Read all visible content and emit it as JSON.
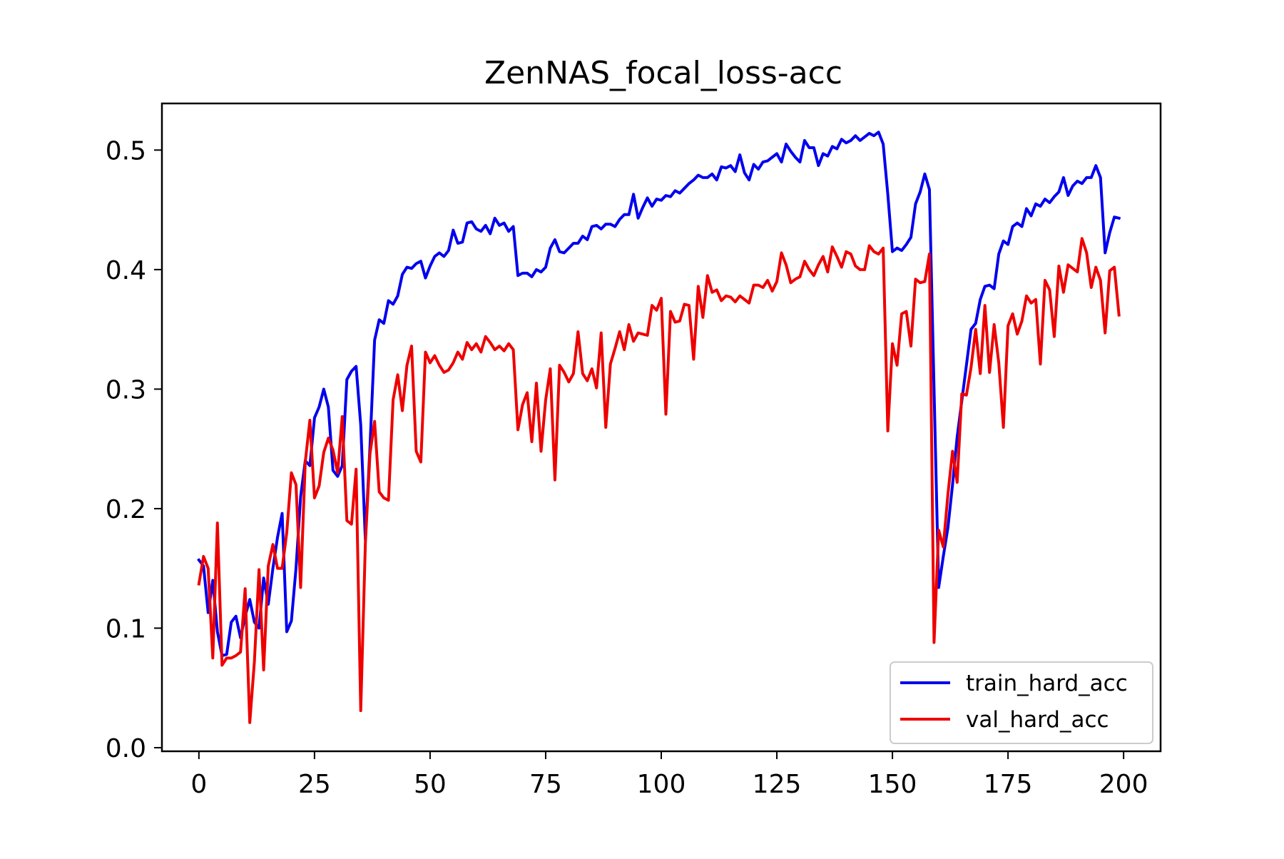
{
  "chart_data": {
    "type": "line",
    "title": "ZenNAS_focal_loss-acc",
    "xlabel": "",
    "ylabel": "",
    "xlim": [
      -8,
      208
    ],
    "ylim": [
      -0.003,
      0.539
    ],
    "xticks": [
      0,
      25,
      50,
      75,
      100,
      125,
      150,
      175,
      200
    ],
    "xtick_labels": [
      "0",
      "25",
      "50",
      "75",
      "100",
      "125",
      "150",
      "175",
      "200"
    ],
    "yticks": [
      0.0,
      0.1,
      0.2,
      0.3,
      0.4,
      0.5
    ],
    "ytick_labels": [
      "0.0",
      "0.1",
      "0.2",
      "0.3",
      "0.4",
      "0.5"
    ],
    "grid": false,
    "legend_position": "lower-right",
    "series": [
      {
        "name": "train_hard_acc",
        "color": "#0000ee",
        "values": [
          0.157,
          0.152,
          0.113,
          0.14,
          0.097,
          0.077,
          0.078,
          0.105,
          0.11,
          0.092,
          0.11,
          0.124,
          0.105,
          0.1,
          0.142,
          0.12,
          0.15,
          0.176,
          0.196,
          0.097,
          0.106,
          0.15,
          0.21,
          0.24,
          0.236,
          0.276,
          0.285,
          0.3,
          0.285,
          0.232,
          0.227,
          0.236,
          0.308,
          0.315,
          0.319,
          0.27,
          0.174,
          0.252,
          0.341,
          0.358,
          0.355,
          0.374,
          0.371,
          0.378,
          0.396,
          0.402,
          0.401,
          0.405,
          0.407,
          0.393,
          0.403,
          0.411,
          0.414,
          0.411,
          0.416,
          0.433,
          0.422,
          0.423,
          0.439,
          0.44,
          0.434,
          0.432,
          0.437,
          0.43,
          0.443,
          0.437,
          0.439,
          0.432,
          0.436,
          0.395,
          0.397,
          0.397,
          0.394,
          0.4,
          0.398,
          0.402,
          0.418,
          0.425,
          0.415,
          0.414,
          0.418,
          0.422,
          0.422,
          0.428,
          0.425,
          0.436,
          0.437,
          0.434,
          0.438,
          0.438,
          0.436,
          0.442,
          0.446,
          0.446,
          0.463,
          0.443,
          0.452,
          0.46,
          0.453,
          0.459,
          0.458,
          0.462,
          0.461,
          0.466,
          0.464,
          0.468,
          0.472,
          0.475,
          0.479,
          0.477,
          0.477,
          0.48,
          0.475,
          0.486,
          0.485,
          0.487,
          0.482,
          0.496,
          0.481,
          0.475,
          0.488,
          0.484,
          0.49,
          0.491,
          0.494,
          0.497,
          0.49,
          0.505,
          0.499,
          0.494,
          0.49,
          0.508,
          0.502,
          0.502,
          0.487,
          0.497,
          0.495,
          0.503,
          0.501,
          0.509,
          0.506,
          0.508,
          0.512,
          0.508,
          0.511,
          0.514,
          0.512,
          0.515,
          0.505,
          0.463,
          0.415,
          0.418,
          0.416,
          0.421,
          0.427,
          0.455,
          0.465,
          0.48,
          0.467,
          0.3,
          0.134,
          0.16,
          0.184,
          0.22,
          0.26,
          0.29,
          0.32,
          0.35,
          0.355,
          0.375,
          0.386,
          0.387,
          0.384,
          0.413,
          0.424,
          0.421,
          0.436,
          0.439,
          0.436,
          0.451,
          0.445,
          0.455,
          0.453,
          0.459,
          0.456,
          0.461,
          0.465,
          0.477,
          0.462,
          0.47,
          0.474,
          0.472,
          0.477,
          0.477,
          0.487,
          0.477,
          0.414,
          0.431,
          0.444,
          0.443
        ]
      },
      {
        "name": "val_hard_acc",
        "color": "#ee0000",
        "values": [
          0.137,
          0.16,
          0.15,
          0.075,
          0.188,
          0.069,
          0.075,
          0.075,
          0.077,
          0.08,
          0.133,
          0.021,
          0.072,
          0.149,
          0.065,
          0.152,
          0.17,
          0.15,
          0.15,
          0.18,
          0.23,
          0.22,
          0.134,
          0.239,
          0.274,
          0.209,
          0.219,
          0.247,
          0.259,
          0.249,
          0.23,
          0.277,
          0.19,
          0.187,
          0.233,
          0.031,
          0.171,
          0.246,
          0.273,
          0.214,
          0.209,
          0.207,
          0.291,
          0.312,
          0.282,
          0.32,
          0.336,
          0.248,
          0.239,
          0.331,
          0.322,
          0.328,
          0.32,
          0.314,
          0.316,
          0.322,
          0.331,
          0.325,
          0.339,
          0.333,
          0.338,
          0.331,
          0.344,
          0.339,
          0.333,
          0.336,
          0.332,
          0.338,
          0.333,
          0.266,
          0.287,
          0.297,
          0.256,
          0.305,
          0.248,
          0.291,
          0.317,
          0.224,
          0.32,
          0.314,
          0.306,
          0.313,
          0.348,
          0.313,
          0.307,
          0.317,
          0.301,
          0.347,
          0.268,
          0.321,
          0.334,
          0.348,
          0.333,
          0.354,
          0.34,
          0.347,
          0.346,
          0.345,
          0.37,
          0.366,
          0.376,
          0.279,
          0.365,
          0.356,
          0.357,
          0.371,
          0.37,
          0.325,
          0.386,
          0.36,
          0.395,
          0.381,
          0.383,
          0.374,
          0.378,
          0.377,
          0.373,
          0.378,
          0.375,
          0.372,
          0.387,
          0.387,
          0.385,
          0.391,
          0.382,
          0.39,
          0.414,
          0.404,
          0.389,
          0.392,
          0.394,
          0.407,
          0.4,
          0.395,
          0.404,
          0.411,
          0.398,
          0.419,
          0.411,
          0.402,
          0.415,
          0.413,
          0.403,
          0.4,
          0.4,
          0.42,
          0.415,
          0.413,
          0.418,
          0.265,
          0.338,
          0.32,
          0.363,
          0.365,
          0.336,
          0.392,
          0.389,
          0.39,
          0.413,
          0.088,
          0.182,
          0.168,
          0.212,
          0.248,
          0.222,
          0.296,
          0.295,
          0.318,
          0.35,
          0.313,
          0.37,
          0.314,
          0.354,
          0.322,
          0.268,
          0.353,
          0.363,
          0.346,
          0.357,
          0.378,
          0.372,
          0.375,
          0.321,
          0.391,
          0.383,
          0.344,
          0.403,
          0.381,
          0.404,
          0.401,
          0.398,
          0.426,
          0.414,
          0.385,
          0.402,
          0.391,
          0.347,
          0.399,
          0.402,
          0.362
        ]
      }
    ]
  }
}
